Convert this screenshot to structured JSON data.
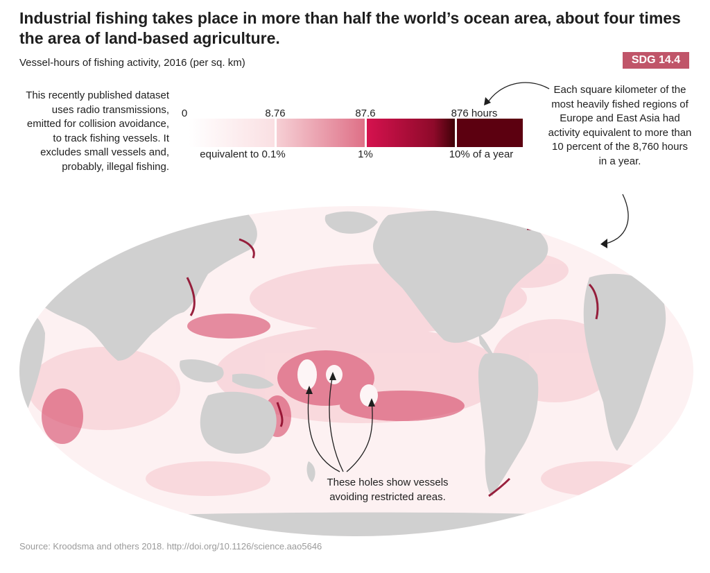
{
  "title": "Industrial fishing takes place in more than half the world’s ocean area, about four times the area of land-based agriculture.",
  "subtitle": "Vessel-hours of fishing activity, 2016 (per sq. km)",
  "badge": "SDG 14.4",
  "annotations": {
    "left_note": "This recently published dataset uses radio transmissions, emitted for collision avoidance, to track fishing vessels. It excludes small vessels and, probably, illegal fishing.",
    "right_note": "Each square kilometer of the most heavily fished regions of Europe and East Asia had activity equivalent to more than 10 percent of the 8,760 hours in a year.",
    "holes_note": "These holes show vessels avoiding restricted areas."
  },
  "legend": {
    "top_ticks": [
      "0",
      "8.76",
      "87.6",
      "876 hours"
    ],
    "bottom_labels": [
      "equivalent to 0.1%",
      "1%",
      "10% of a year"
    ],
    "colors": [
      "#fbe4e6",
      "#f3b8c0",
      "#d0124f",
      "#5c0010"
    ]
  },
  "colors": {
    "land": "#d0d0d0",
    "ocean": "#fdf1f2",
    "heavy": "#8e0a2a",
    "badge": "#c05569"
  },
  "source": "Source: Kroodsma and others 2018. http://doi.org/10.1126/science.aao5646"
}
